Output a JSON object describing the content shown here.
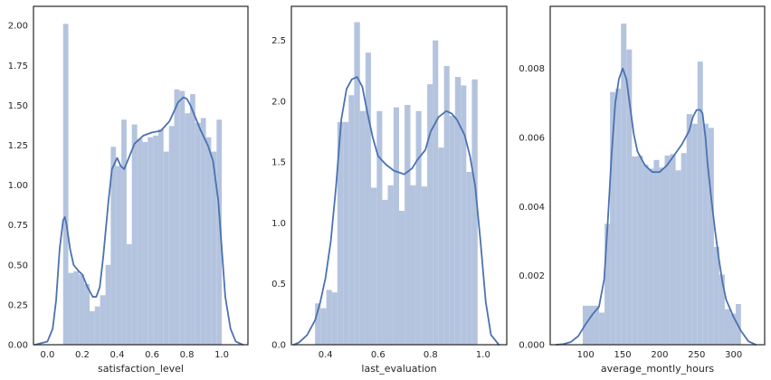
{
  "colors": {
    "bar": "#b4c4df",
    "kde": "#4c72b0",
    "frame": "#262626",
    "text": "#262626",
    "background": "#ffffff"
  },
  "chart_data": [
    {
      "type": "bar",
      "subtype": "histogram_with_kde",
      "title": "",
      "xlabel": "satisfaction_level",
      "ylabel": "",
      "xlim": [
        -0.08,
        1.15
      ],
      "ylim": [
        0,
        2.12
      ],
      "xticks": [
        0.0,
        0.2,
        0.4,
        0.6,
        0.8,
        1.0
      ],
      "xtick_labels": [
        "0.0",
        "0.2",
        "0.4",
        "0.6",
        "0.8",
        "1.0"
      ],
      "yticks": [
        0,
        0.25,
        0.5,
        0.75,
        1.0,
        1.25,
        1.5,
        1.75,
        2.0
      ],
      "ytick_labels": [
        "0.00",
        "0.25",
        "0.50",
        "0.75",
        "1.00",
        "1.25",
        "1.50",
        "1.75",
        "2.00"
      ],
      "grid": false,
      "bins": [
        {
          "x0": 0.09,
          "x1": 0.12,
          "value": 2.01
        },
        {
          "x0": 0.12,
          "x1": 0.15,
          "value": 0.45
        },
        {
          "x0": 0.15,
          "x1": 0.181,
          "value": 0.46
        },
        {
          "x0": 0.181,
          "x1": 0.211,
          "value": 0.44
        },
        {
          "x0": 0.211,
          "x1": 0.242,
          "value": 0.38
        },
        {
          "x0": 0.242,
          "x1": 0.272,
          "value": 0.21
        },
        {
          "x0": 0.272,
          "x1": 0.302,
          "value": 0.24
        },
        {
          "x0": 0.302,
          "x1": 0.333,
          "value": 0.31
        },
        {
          "x0": 0.333,
          "x1": 0.363,
          "value": 0.5
        },
        {
          "x0": 0.363,
          "x1": 0.393,
          "value": 1.24
        },
        {
          "x0": 0.393,
          "x1": 0.424,
          "value": 1.12
        },
        {
          "x0": 0.424,
          "x1": 0.454,
          "value": 1.41
        },
        {
          "x0": 0.454,
          "x1": 0.484,
          "value": 0.63
        },
        {
          "x0": 0.484,
          "x1": 0.515,
          "value": 1.38
        },
        {
          "x0": 0.515,
          "x1": 0.545,
          "value": 1.29
        },
        {
          "x0": 0.545,
          "x1": 0.575,
          "value": 1.27
        },
        {
          "x0": 0.575,
          "x1": 0.606,
          "value": 1.3
        },
        {
          "x0": 0.606,
          "x1": 0.636,
          "value": 1.31
        },
        {
          "x0": 0.636,
          "x1": 0.666,
          "value": 1.35
        },
        {
          "x0": 0.666,
          "x1": 0.697,
          "value": 1.21
        },
        {
          "x0": 0.697,
          "x1": 0.727,
          "value": 1.37
        },
        {
          "x0": 0.727,
          "x1": 0.757,
          "value": 1.6
        },
        {
          "x0": 0.757,
          "x1": 0.788,
          "value": 1.59
        },
        {
          "x0": 0.788,
          "x1": 0.818,
          "value": 1.45
        },
        {
          "x0": 0.818,
          "x1": 0.848,
          "value": 1.57
        },
        {
          "x0": 0.848,
          "x1": 0.879,
          "value": 1.39
        },
        {
          "x0": 0.879,
          "x1": 0.909,
          "value": 1.42
        },
        {
          "x0": 0.909,
          "x1": 0.939,
          "value": 1.3
        },
        {
          "x0": 0.939,
          "x1": 0.97,
          "value": 1.21
        },
        {
          "x0": 0.97,
          "x1": 1.0,
          "value": 1.41
        }
      ],
      "kde": {
        "x": [
          -0.07,
          0.0,
          0.03,
          0.05,
          0.07,
          0.09,
          0.1,
          0.11,
          0.13,
          0.15,
          0.18,
          0.2,
          0.23,
          0.26,
          0.28,
          0.3,
          0.32,
          0.35,
          0.37,
          0.4,
          0.42,
          0.44,
          0.47,
          0.5,
          0.55,
          0.6,
          0.65,
          0.7,
          0.75,
          0.78,
          0.8,
          0.82,
          0.85,
          0.88,
          0.92,
          0.95,
          0.98,
          1.0,
          1.02,
          1.05,
          1.08,
          1.12
        ],
        "y": [
          0.0,
          0.02,
          0.1,
          0.28,
          0.6,
          0.78,
          0.8,
          0.75,
          0.6,
          0.5,
          0.46,
          0.44,
          0.36,
          0.3,
          0.3,
          0.36,
          0.55,
          0.9,
          1.1,
          1.17,
          1.12,
          1.1,
          1.18,
          1.26,
          1.31,
          1.33,
          1.34,
          1.4,
          1.52,
          1.55,
          1.54,
          1.5,
          1.42,
          1.34,
          1.25,
          1.15,
          0.9,
          0.6,
          0.3,
          0.1,
          0.02,
          0.0
        ]
      }
    },
    {
      "type": "bar",
      "subtype": "histogram_with_kde",
      "title": "",
      "xlabel": "last_evaluation",
      "ylabel": "",
      "xlim": [
        0.27,
        1.09
      ],
      "ylim": [
        0,
        2.78
      ],
      "xticks": [
        0.4,
        0.6,
        0.8,
        1.0
      ],
      "xtick_labels": [
        "0.4",
        "0.6",
        "0.8",
        "1.0"
      ],
      "yticks": [
        0,
        0.5,
        1.0,
        1.5,
        2.0,
        2.5
      ],
      "ytick_labels": [
        "0.0",
        "0.5",
        "1.0",
        "1.5",
        "2.0",
        "2.5"
      ],
      "grid": false,
      "bins": [
        {
          "x0": 0.36,
          "x1": 0.381,
          "value": 0.34
        },
        {
          "x0": 0.381,
          "x1": 0.403,
          "value": 0.3
        },
        {
          "x0": 0.403,
          "x1": 0.424,
          "value": 0.45
        },
        {
          "x0": 0.424,
          "x1": 0.445,
          "value": 0.43
        },
        {
          "x0": 0.445,
          "x1": 0.467,
          "value": 1.83
        },
        {
          "x0": 0.467,
          "x1": 0.488,
          "value": 1.83
        },
        {
          "x0": 0.488,
          "x1": 0.509,
          "value": 2.05
        },
        {
          "x0": 0.509,
          "x1": 0.531,
          "value": 2.65
        },
        {
          "x0": 0.531,
          "x1": 0.552,
          "value": 1.92
        },
        {
          "x0": 0.552,
          "x1": 0.573,
          "value": 2.4
        },
        {
          "x0": 0.573,
          "x1": 0.595,
          "value": 1.29
        },
        {
          "x0": 0.595,
          "x1": 0.616,
          "value": 1.92
        },
        {
          "x0": 0.616,
          "x1": 0.637,
          "value": 1.19
        },
        {
          "x0": 0.637,
          "x1": 0.659,
          "value": 1.31
        },
        {
          "x0": 0.659,
          "x1": 0.68,
          "value": 1.95
        },
        {
          "x0": 0.68,
          "x1": 0.701,
          "value": 1.1
        },
        {
          "x0": 0.701,
          "x1": 0.723,
          "value": 1.97
        },
        {
          "x0": 0.723,
          "x1": 0.744,
          "value": 1.31
        },
        {
          "x0": 0.744,
          "x1": 0.765,
          "value": 1.92
        },
        {
          "x0": 0.765,
          "x1": 0.787,
          "value": 1.3
        },
        {
          "x0": 0.787,
          "x1": 0.808,
          "value": 2.14
        },
        {
          "x0": 0.808,
          "x1": 0.829,
          "value": 2.5
        },
        {
          "x0": 0.829,
          "x1": 0.851,
          "value": 1.62
        },
        {
          "x0": 0.851,
          "x1": 0.872,
          "value": 2.29
        },
        {
          "x0": 0.872,
          "x1": 0.893,
          "value": 1.88
        },
        {
          "x0": 0.893,
          "x1": 0.915,
          "value": 2.2
        },
        {
          "x0": 0.915,
          "x1": 0.936,
          "value": 2.13
        },
        {
          "x0": 0.936,
          "x1": 0.957,
          "value": 1.42
        },
        {
          "x0": 0.957,
          "x1": 0.979,
          "value": 2.18
        }
      ],
      "kde": {
        "x": [
          0.28,
          0.3,
          0.33,
          0.36,
          0.38,
          0.4,
          0.42,
          0.44,
          0.46,
          0.48,
          0.5,
          0.52,
          0.54,
          0.56,
          0.58,
          0.6,
          0.63,
          0.66,
          0.7,
          0.73,
          0.75,
          0.78,
          0.8,
          0.83,
          0.86,
          0.88,
          0.9,
          0.93,
          0.95,
          0.97,
          0.99,
          1.01,
          1.03,
          1.06
        ],
        "y": [
          0.0,
          0.02,
          0.08,
          0.2,
          0.35,
          0.55,
          0.85,
          1.3,
          1.85,
          2.1,
          2.18,
          2.2,
          2.12,
          1.9,
          1.7,
          1.55,
          1.48,
          1.43,
          1.4,
          1.45,
          1.52,
          1.6,
          1.75,
          1.87,
          1.92,
          1.9,
          1.85,
          1.72,
          1.55,
          1.3,
          0.85,
          0.35,
          0.08,
          0.0
        ]
      }
    },
    {
      "type": "bar",
      "subtype": "histogram_with_kde",
      "title": "",
      "xlabel": "average_montly_hours",
      "ylabel": "",
      "xlim": [
        52,
        342
      ],
      "ylim": [
        0,
        0.0098
      ],
      "xticks": [
        100,
        150,
        200,
        250,
        300
      ],
      "xtick_labels": [
        "100",
        "150",
        "200",
        "250",
        "300"
      ],
      "yticks": [
        0,
        0.002,
        0.004,
        0.006,
        0.008
      ],
      "ytick_labels": [
        "0.000",
        "0.002",
        "0.004",
        "0.006",
        "0.008"
      ],
      "grid": false,
      "bins": [
        {
          "x0": 96,
          "x1": 103.4,
          "value": 0.00113
        },
        {
          "x0": 103.4,
          "x1": 110.8,
          "value": 0.00113
        },
        {
          "x0": 110.8,
          "x1": 118.2,
          "value": 0.00113
        },
        {
          "x0": 118.2,
          "x1": 125.5,
          "value": 0.00093
        },
        {
          "x0": 125.5,
          "x1": 132.9,
          "value": 0.0035
        },
        {
          "x0": 132.9,
          "x1": 140.3,
          "value": 0.00732
        },
        {
          "x0": 140.3,
          "x1": 147.7,
          "value": 0.00742
        },
        {
          "x0": 147.7,
          "x1": 155.1,
          "value": 0.0093
        },
        {
          "x0": 155.1,
          "x1": 162.5,
          "value": 0.00855
        },
        {
          "x0": 162.5,
          "x1": 169.9,
          "value": 0.00545
        },
        {
          "x0": 169.9,
          "x1": 177.3,
          "value": 0.00548
        },
        {
          "x0": 177.3,
          "x1": 184.7,
          "value": 0.00522
        },
        {
          "x0": 184.7,
          "x1": 192.0,
          "value": 0.0051
        },
        {
          "x0": 192.0,
          "x1": 199.4,
          "value": 0.00535
        },
        {
          "x0": 199.4,
          "x1": 206.8,
          "value": 0.00513
        },
        {
          "x0": 206.8,
          "x1": 214.2,
          "value": 0.00548
        },
        {
          "x0": 214.2,
          "x1": 221.6,
          "value": 0.00552
        },
        {
          "x0": 221.6,
          "x1": 229.0,
          "value": 0.00505
        },
        {
          "x0": 229.0,
          "x1": 236.4,
          "value": 0.00555
        },
        {
          "x0": 236.4,
          "x1": 243.8,
          "value": 0.00668
        },
        {
          "x0": 243.8,
          "x1": 251.2,
          "value": 0.0064
        },
        {
          "x0": 251.2,
          "x1": 258.5,
          "value": 0.0082
        },
        {
          "x0": 258.5,
          "x1": 265.9,
          "value": 0.0064
        },
        {
          "x0": 265.9,
          "x1": 273.3,
          "value": 0.00628
        },
        {
          "x0": 273.3,
          "x1": 280.7,
          "value": 0.00283
        },
        {
          "x0": 280.7,
          "x1": 288.1,
          "value": 0.00203
        },
        {
          "x0": 288.1,
          "x1": 295.5,
          "value": 0.00103
        },
        {
          "x0": 295.5,
          "x1": 302.9,
          "value": 0.0009
        },
        {
          "x0": 302.9,
          "x1": 310.0,
          "value": 0.00118
        }
      ],
      "kde": {
        "x": [
          60,
          70,
          80,
          90,
          100,
          110,
          118,
          125,
          130,
          135,
          140,
          145,
          150,
          155,
          160,
          165,
          170,
          180,
          190,
          200,
          210,
          220,
          230,
          240,
          245,
          250,
          255,
          258,
          262,
          265,
          270,
          275,
          280,
          285,
          290,
          300,
          310,
          320,
          330
        ],
        "y": [
          0.0,
          2e-05,
          8e-05,
          0.00025,
          0.0006,
          0.0009,
          0.0011,
          0.0019,
          0.0036,
          0.0055,
          0.007,
          0.0077,
          0.008,
          0.0077,
          0.0069,
          0.0061,
          0.0056,
          0.0052,
          0.005,
          0.005,
          0.0052,
          0.0055,
          0.0058,
          0.0062,
          0.0066,
          0.0068,
          0.0068,
          0.0067,
          0.006,
          0.0052,
          0.0042,
          0.0033,
          0.0025,
          0.0018,
          0.0013,
          0.0008,
          0.0004,
          0.0001,
          0.0
        ]
      }
    }
  ]
}
